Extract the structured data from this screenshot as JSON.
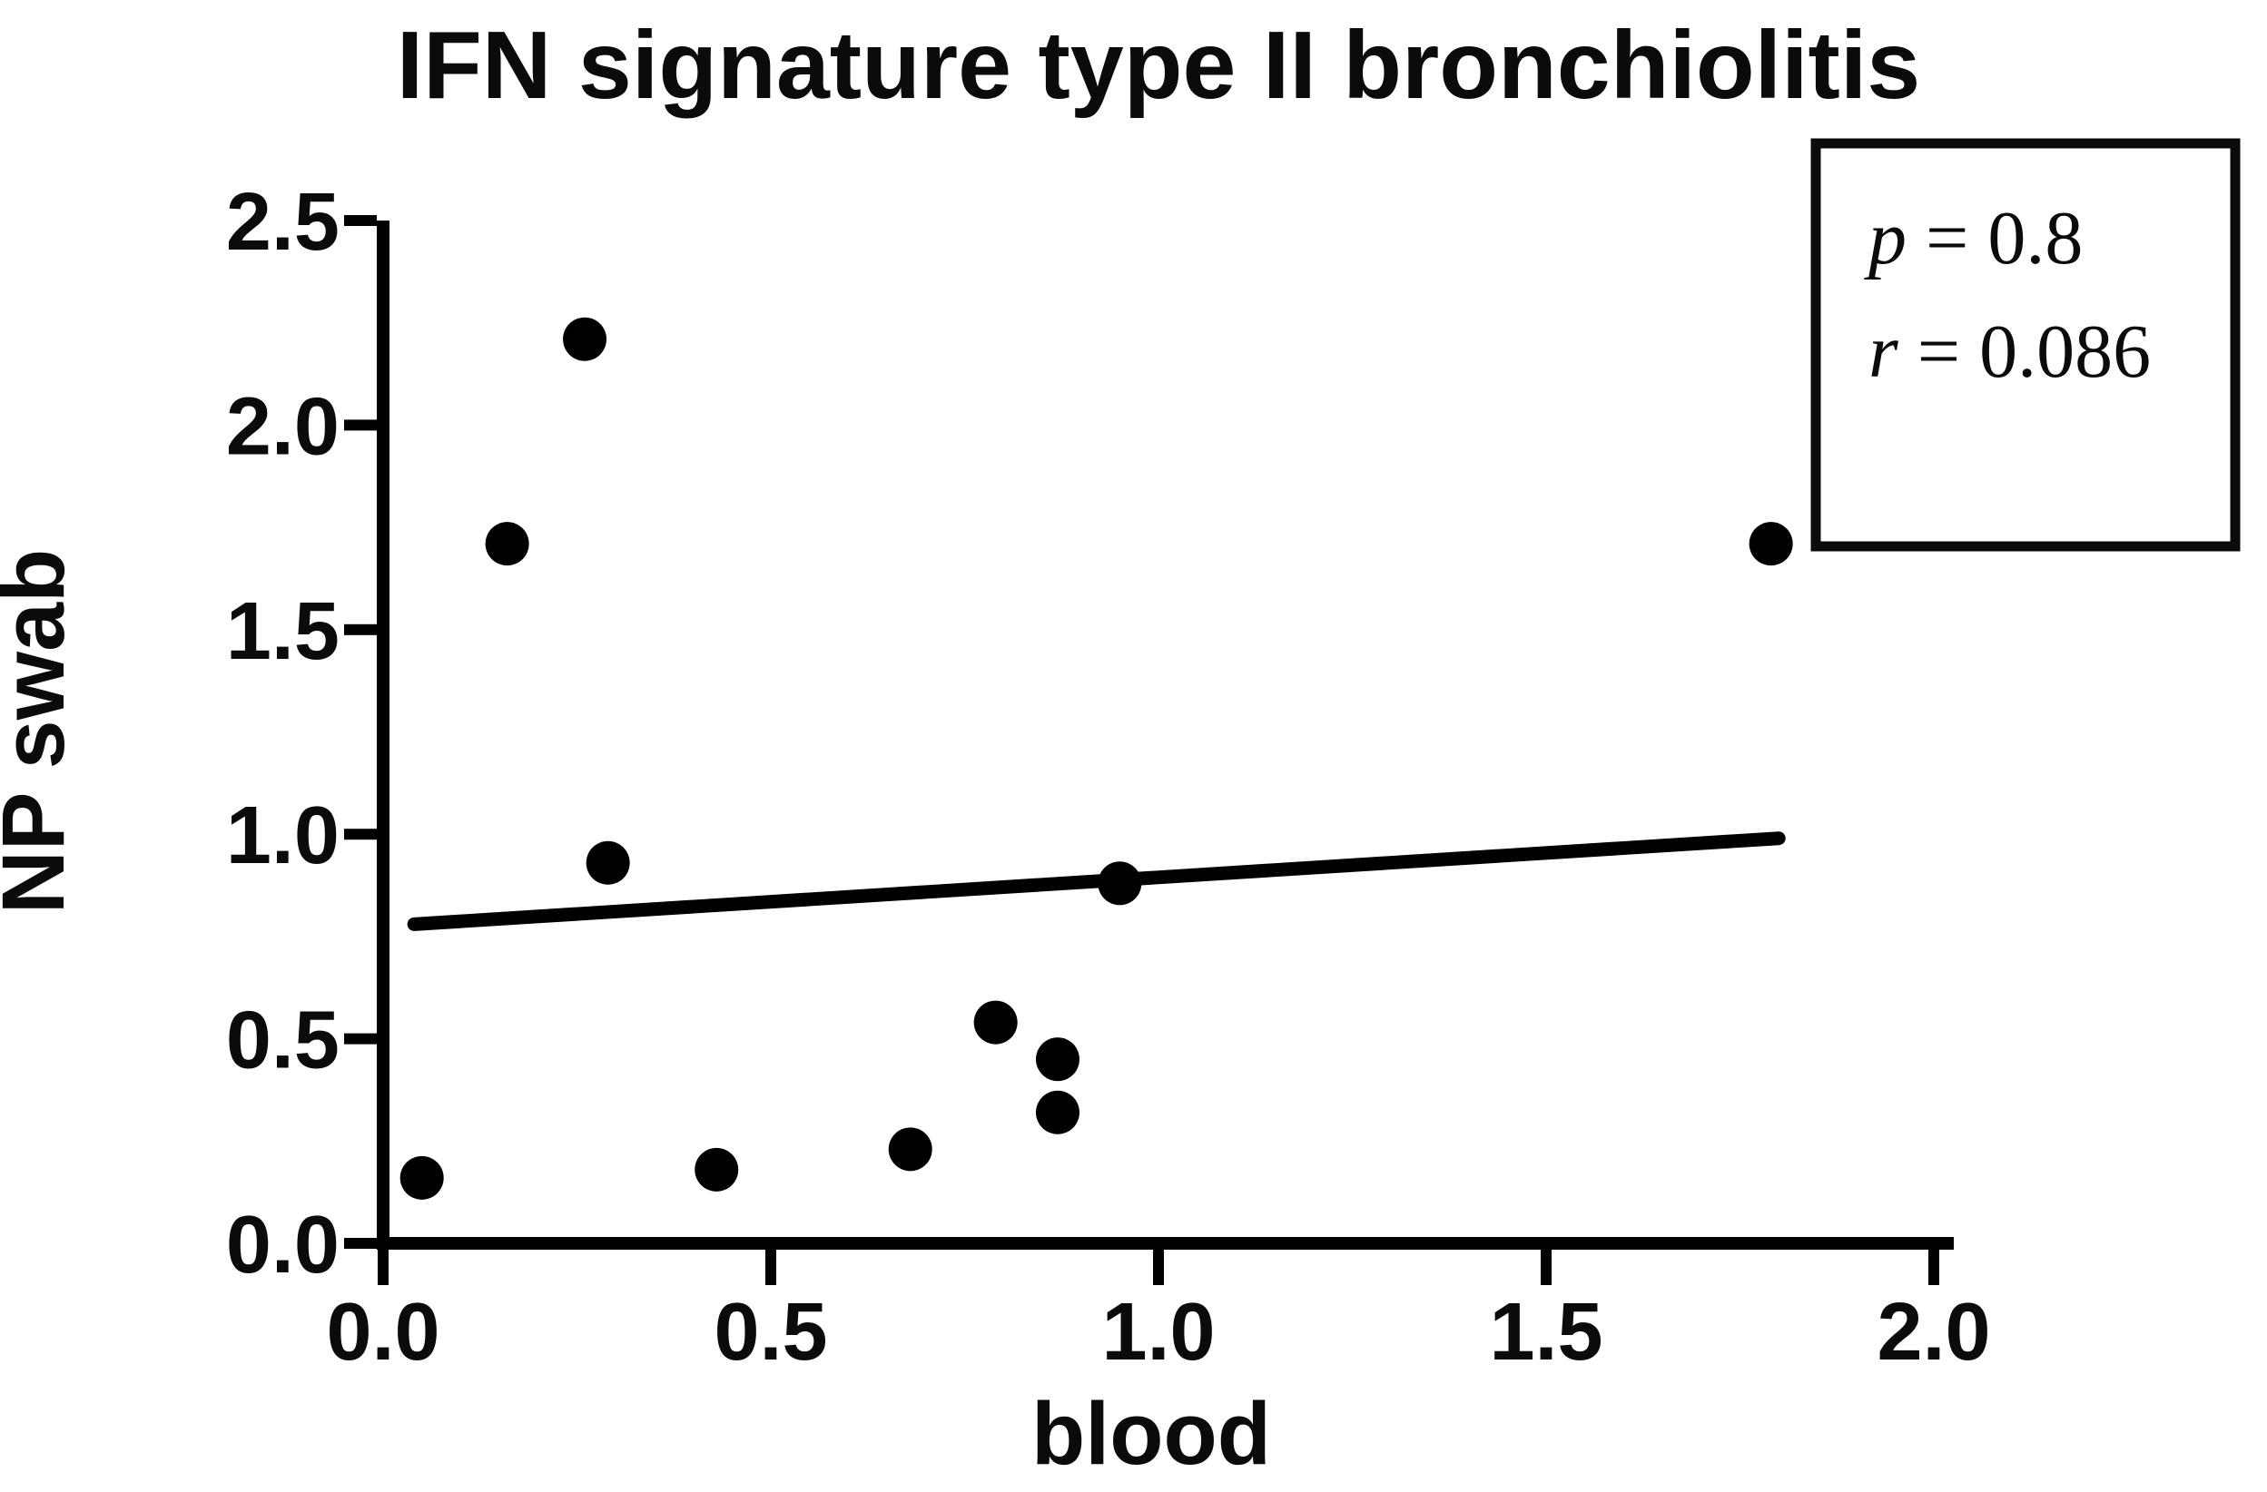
{
  "chart_data": {
    "type": "scatter",
    "title": "IFN signature type II bronchiolitis",
    "xlabel": "blood",
    "ylabel": "NP swab",
    "xlim": [
      0.0,
      2.0
    ],
    "ylim": [
      0.0,
      2.5
    ],
    "xticks": [
      "0.0",
      "0.5",
      "1.0",
      "1.5",
      "2.0"
    ],
    "yticks": [
      "0.0",
      "0.5",
      "1.0",
      "1.5",
      "2.0",
      "2.5"
    ],
    "grid": false,
    "legend_position": "none",
    "points": [
      {
        "x": 0.05,
        "y": 0.16
      },
      {
        "x": 0.16,
        "y": 1.71
      },
      {
        "x": 0.26,
        "y": 2.21
      },
      {
        "x": 0.29,
        "y": 0.93
      },
      {
        "x": 0.43,
        "y": 0.18
      },
      {
        "x": 0.68,
        "y": 0.23
      },
      {
        "x": 0.79,
        "y": 0.54
      },
      {
        "x": 0.87,
        "y": 0.45
      },
      {
        "x": 0.87,
        "y": 0.32
      },
      {
        "x": 0.95,
        "y": 0.88
      },
      {
        "x": 1.79,
        "y": 1.71
      }
    ],
    "trend_line": {
      "x1": 0.04,
      "y1": 0.78,
      "x2": 1.8,
      "y2": 0.99
    },
    "annotation": {
      "lines": [
        {
          "symbol": "p",
          "rest": " = 0.8"
        },
        {
          "symbol": "r",
          "rest": " = 0.086"
        }
      ]
    },
    "colors": {
      "marker": "#000000",
      "trend_line": "#000000",
      "axis": "#000000",
      "background": "#ffffff"
    }
  }
}
